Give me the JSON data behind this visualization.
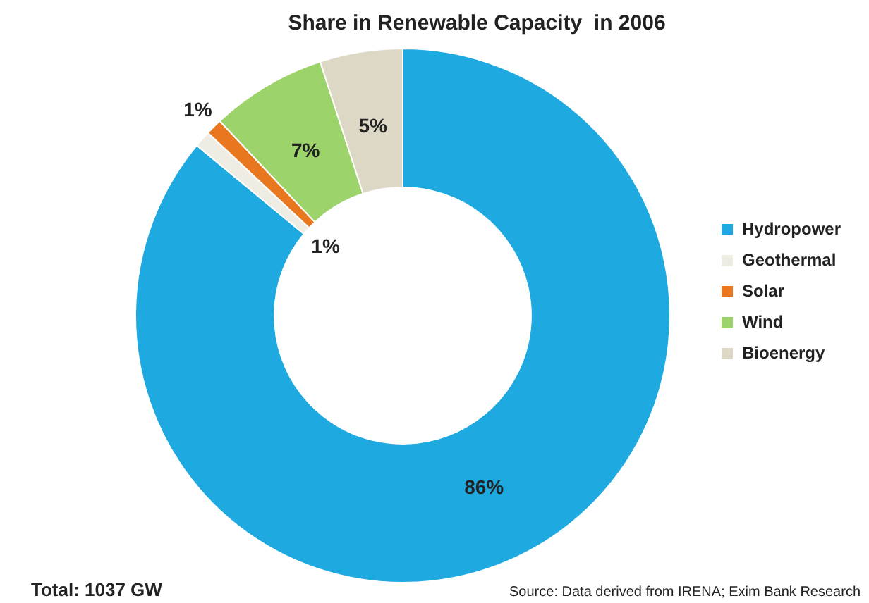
{
  "chart_data": {
    "type": "donut",
    "title": "Share in Renewable Capacity  in 2006",
    "categories": [
      "Hydropower",
      "Geothermal",
      "Solar",
      "Wind",
      "Bioenergy"
    ],
    "values": [
      86,
      1,
      1,
      7,
      5
    ],
    "colors": [
      "#1ea9e1",
      "#efece4",
      "#e8771f",
      "#9dd36b",
      "#ddd8c6"
    ],
    "value_labels": [
      "86%",
      "1%",
      "1%",
      "7%",
      "5%"
    ],
    "legend": "right",
    "annotations": [
      "Total: 1037 GW",
      "Source: Data derived from IRENA; Exim Bank Research"
    ]
  }
}
